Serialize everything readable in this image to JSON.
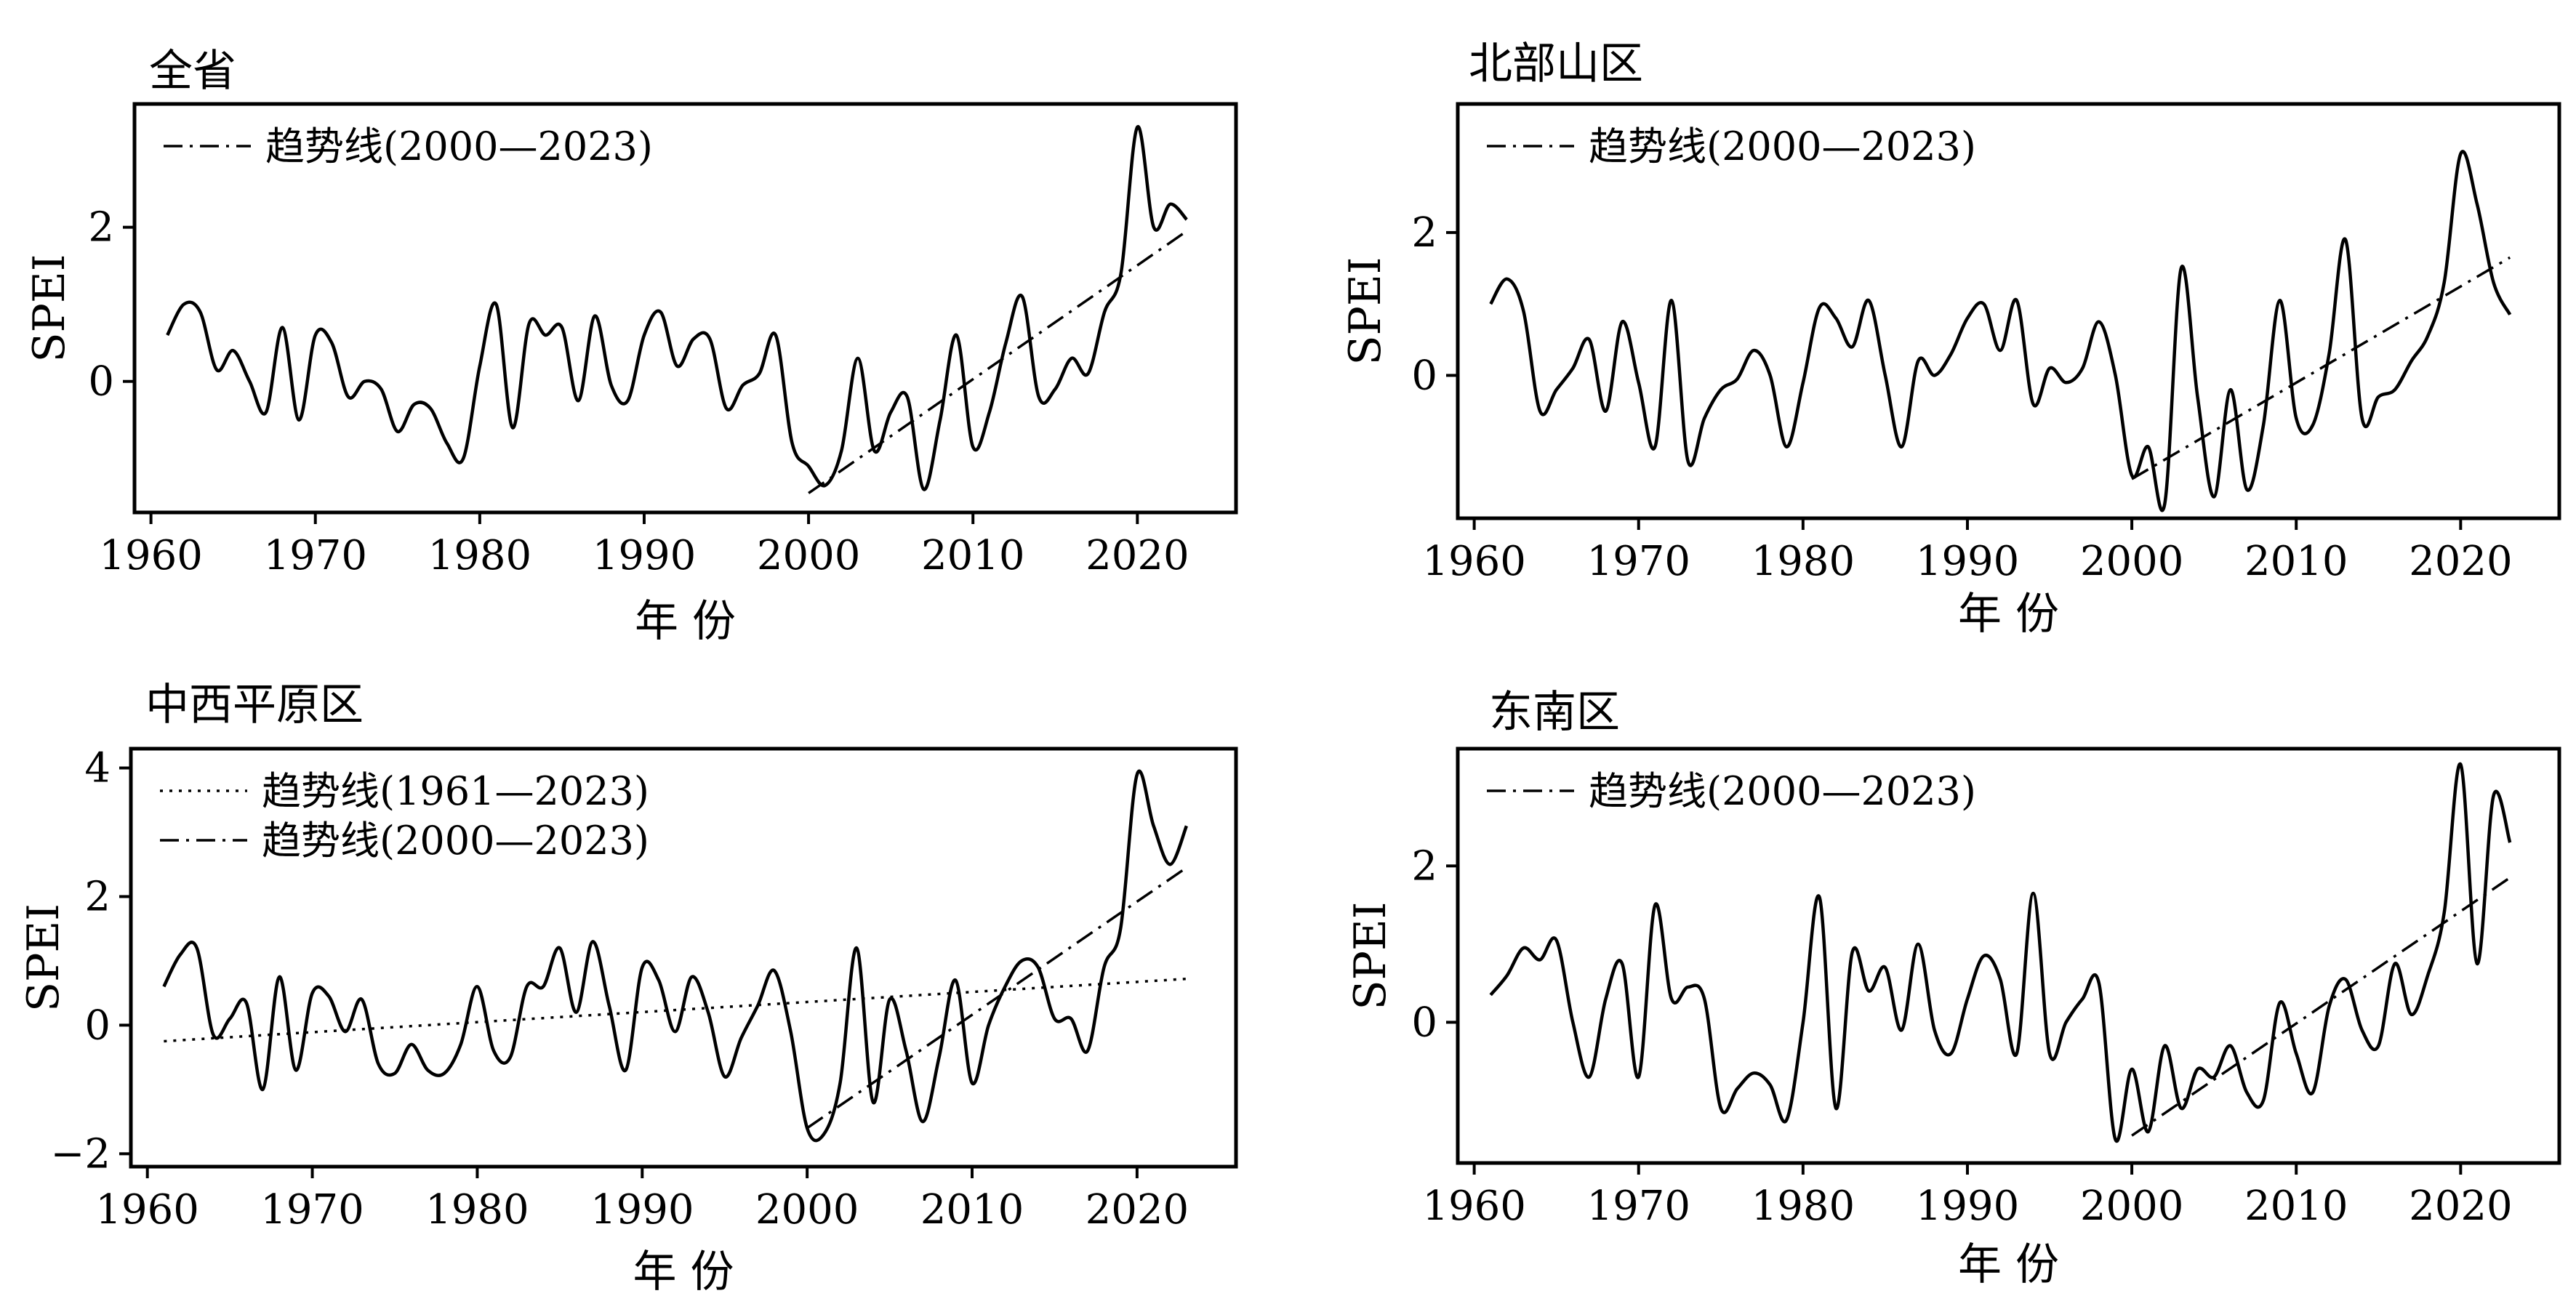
{
  "chart_data": [
    {
      "type": "line",
      "title": "全省",
      "xlabel": "年 份",
      "ylabel": "SPEI",
      "xlim": [
        1959,
        2026
      ],
      "ylim": [
        -1.7,
        3.6
      ],
      "xticks": [
        1960,
        1970,
        1980,
        1990,
        2000,
        2010,
        2020
      ],
      "yticks": [
        0,
        2
      ],
      "legend_position": "top-left",
      "series": [
        {
          "name": "",
          "style": "solid",
          "x": [
            1961,
            1962,
            1963,
            1964,
            1965,
            1966,
            1967,
            1968,
            1969,
            1970,
            1971,
            1972,
            1973,
            1974,
            1975,
            1976,
            1977,
            1978,
            1979,
            1980,
            1981,
            1982,
            1983,
            1984,
            1985,
            1986,
            1987,
            1988,
            1989,
            1990,
            1991,
            1992,
            1993,
            1994,
            1995,
            1996,
            1997,
            1998,
            1999,
            2000,
            2001,
            2002,
            2003,
            2004,
            2005,
            2006,
            2007,
            2008,
            2009,
            2010,
            2011,
            2012,
            2013,
            2014,
            2015,
            2016,
            2017,
            2018,
            2019,
            2020,
            2021,
            2022,
            2023
          ],
          "y": [
            0.6,
            1.0,
            0.9,
            0.15,
            0.4,
            0.0,
            -0.4,
            0.7,
            -0.5,
            0.6,
            0.5,
            -0.2,
            0.0,
            -0.1,
            -0.65,
            -0.3,
            -0.35,
            -0.8,
            -1.0,
            0.2,
            1.0,
            -0.6,
            0.75,
            0.6,
            0.7,
            -0.25,
            0.85,
            -0.05,
            -0.25,
            0.6,
            0.9,
            0.2,
            0.55,
            0.55,
            -0.35,
            -0.05,
            0.1,
            0.6,
            -0.8,
            -1.1,
            -1.35,
            -0.9,
            0.3,
            -0.9,
            -0.4,
            -0.2,
            -1.4,
            -0.5,
            0.6,
            -0.85,
            -0.4,
            0.5,
            1.1,
            -0.2,
            -0.1,
            0.3,
            0.1,
            0.9,
            1.4,
            3.3,
            2.0,
            2.3,
            2.1
          ]
        },
        {
          "name": "趋势线(2000—2023)",
          "style": "dashdot",
          "x": [
            2000,
            2023
          ],
          "y": [
            -1.45,
            1.95
          ]
        }
      ]
    },
    {
      "type": "line",
      "title": "北部山区",
      "xlabel": "年 份",
      "ylabel": "SPEI",
      "xlim": [
        1959,
        2026
      ],
      "ylim": [
        -2.0,
        3.8
      ],
      "xticks": [
        1960,
        1970,
        1980,
        1990,
        2000,
        2010,
        2020
      ],
      "yticks": [
        0,
        2
      ],
      "legend_position": "top-left",
      "series": [
        {
          "name": "",
          "style": "solid",
          "x": [
            1961,
            1962,
            1963,
            1964,
            1965,
            1966,
            1967,
            1968,
            1969,
            1970,
            1971,
            1972,
            1973,
            1974,
            1975,
            1976,
            1977,
            1978,
            1979,
            1980,
            1981,
            1982,
            1983,
            1984,
            1985,
            1986,
            1987,
            1988,
            1989,
            1990,
            1991,
            1992,
            1993,
            1994,
            1995,
            1996,
            1997,
            1998,
            1999,
            2000,
            2001,
            2002,
            2003,
            2004,
            2005,
            2006,
            2007,
            2008,
            2009,
            2010,
            2011,
            2012,
            2013,
            2014,
            2015,
            2016,
            2017,
            2018,
            2019,
            2020,
            2021,
            2022,
            2023
          ],
          "y": [
            1.0,
            1.35,
            0.9,
            -0.5,
            -0.2,
            0.1,
            0.5,
            -0.5,
            0.75,
            -0.1,
            -1.0,
            1.05,
            -1.2,
            -0.6,
            -0.2,
            -0.05,
            0.35,
            0.0,
            -1.0,
            -0.1,
            0.95,
            0.8,
            0.4,
            1.05,
            0.0,
            -1.0,
            0.2,
            0.0,
            0.3,
            0.8,
            1.0,
            0.35,
            1.05,
            -0.4,
            0.1,
            -0.1,
            0.1,
            0.75,
            0.0,
            -1.4,
            -1.0,
            -1.8,
            1.5,
            -0.3,
            -1.7,
            -0.2,
            -1.6,
            -0.7,
            1.05,
            -0.6,
            -0.7,
            0.3,
            1.9,
            -0.6,
            -0.3,
            -0.2,
            0.2,
            0.55,
            1.3,
            3.1,
            2.4,
            1.3,
            0.85
          ]
        },
        {
          "name": "趋势线(2000—2023)",
          "style": "dashdot",
          "x": [
            2000,
            2023
          ],
          "y": [
            -1.45,
            1.65
          ]
        }
      ]
    },
    {
      "type": "line",
      "title": "中西平原区",
      "xlabel": "年 份",
      "ylabel": "SPEI",
      "xlim": [
        1959,
        2026
      ],
      "ylim": [
        -2.2,
        4.3
      ],
      "xticks": [
        1960,
        1970,
        1980,
        1990,
        2000,
        2010,
        2020
      ],
      "yticks": [
        -2,
        0,
        2,
        4
      ],
      "legend_position": "top-left",
      "series": [
        {
          "name": "",
          "style": "solid",
          "x": [
            1961,
            1962,
            1963,
            1964,
            1965,
            1966,
            1967,
            1968,
            1969,
            1970,
            1971,
            1972,
            1973,
            1974,
            1975,
            1976,
            1977,
            1978,
            1979,
            1980,
            1981,
            1982,
            1983,
            1984,
            1985,
            1986,
            1987,
            1988,
            1989,
            1990,
            1991,
            1992,
            1993,
            1994,
            1995,
            1996,
            1997,
            1998,
            1999,
            2000,
            2001,
            2002,
            2003,
            2004,
            2005,
            2006,
            2007,
            2008,
            2009,
            2010,
            2011,
            2012,
            2013,
            2014,
            2015,
            2016,
            2017,
            2018,
            2019,
            2020,
            2021,
            2022,
            2023
          ],
          "y": [
            0.6,
            1.1,
            1.2,
            -0.15,
            0.1,
            0.35,
            -1.0,
            0.75,
            -0.7,
            0.5,
            0.45,
            -0.1,
            0.4,
            -0.6,
            -0.75,
            -0.3,
            -0.7,
            -0.75,
            -0.3,
            0.6,
            -0.4,
            -0.5,
            0.6,
            0.6,
            1.2,
            0.2,
            1.3,
            0.3,
            -0.7,
            0.9,
            0.7,
            -0.1,
            0.75,
            0.2,
            -0.8,
            -0.2,
            0.3,
            0.85,
            -0.1,
            -1.6,
            -1.7,
            -0.9,
            1.2,
            -1.2,
            0.4,
            -0.4,
            -1.5,
            -0.5,
            0.7,
            -0.9,
            0.0,
            0.6,
            1.0,
            0.9,
            0.1,
            0.1,
            -0.4,
            0.9,
            1.5,
            3.9,
            3.1,
            2.5,
            3.1
          ]
        },
        {
          "name": "趋势线(1961—2023)",
          "style": "dotted",
          "x": [
            1961,
            2023
          ],
          "y": [
            -0.25,
            0.72
          ]
        },
        {
          "name": "趋势线(2000—2023)",
          "style": "dashdot",
          "x": [
            2000,
            2023
          ],
          "y": [
            -1.6,
            2.45
          ]
        }
      ]
    },
    {
      "type": "line",
      "title": "东南区",
      "xlabel": "年 份",
      "ylabel": "SPEI",
      "xlim": [
        1959,
        2026
      ],
      "ylim": [
        -1.8,
        3.5
      ],
      "xticks": [
        1960,
        1970,
        1980,
        1990,
        2000,
        2010,
        2020
      ],
      "yticks": [
        0,
        2
      ],
      "legend_position": "top-left",
      "series": [
        {
          "name": "",
          "style": "solid",
          "x": [
            1961,
            1962,
            1963,
            1964,
            1965,
            1966,
            1967,
            1968,
            1969,
            1970,
            1971,
            1972,
            1973,
            1974,
            1975,
            1976,
            1977,
            1978,
            1979,
            1980,
            1981,
            1982,
            1983,
            1984,
            1985,
            1986,
            1987,
            1988,
            1989,
            1990,
            1991,
            1992,
            1993,
            1994,
            1995,
            1996,
            1997,
            1998,
            1999,
            2000,
            2001,
            2002,
            2003,
            2004,
            2005,
            2006,
            2007,
            2008,
            2009,
            2010,
            2011,
            2012,
            2013,
            2014,
            2015,
            2016,
            2017,
            2018,
            2019,
            2020,
            2021,
            2022,
            2023
          ],
          "y": [
            0.35,
            0.6,
            0.95,
            0.8,
            1.05,
            0.0,
            -0.7,
            0.3,
            0.75,
            -0.7,
            1.5,
            0.3,
            0.45,
            0.3,
            -1.1,
            -0.85,
            -0.65,
            -0.8,
            -1.25,
            0.0,
            1.6,
            -1.1,
            0.9,
            0.4,
            0.7,
            -0.1,
            1.0,
            -0.1,
            -0.4,
            0.3,
            0.85,
            0.55,
            -0.4,
            1.65,
            -0.4,
            0.0,
            0.3,
            0.5,
            -1.5,
            -0.6,
            -1.4,
            -0.3,
            -1.1,
            -0.6,
            -0.7,
            -0.3,
            -0.9,
            -1.0,
            0.25,
            -0.4,
            -0.9,
            0.2,
            0.55,
            -0.1,
            -0.3,
            0.75,
            0.1,
            0.6,
            1.4,
            3.3,
            0.75,
            2.9,
            2.3
          ]
        },
        {
          "name": "趋势线(2000—2023)",
          "style": "dashdot",
          "x": [
            2000,
            2023
          ],
          "y": [
            -1.45,
            1.85
          ]
        }
      ]
    }
  ]
}
